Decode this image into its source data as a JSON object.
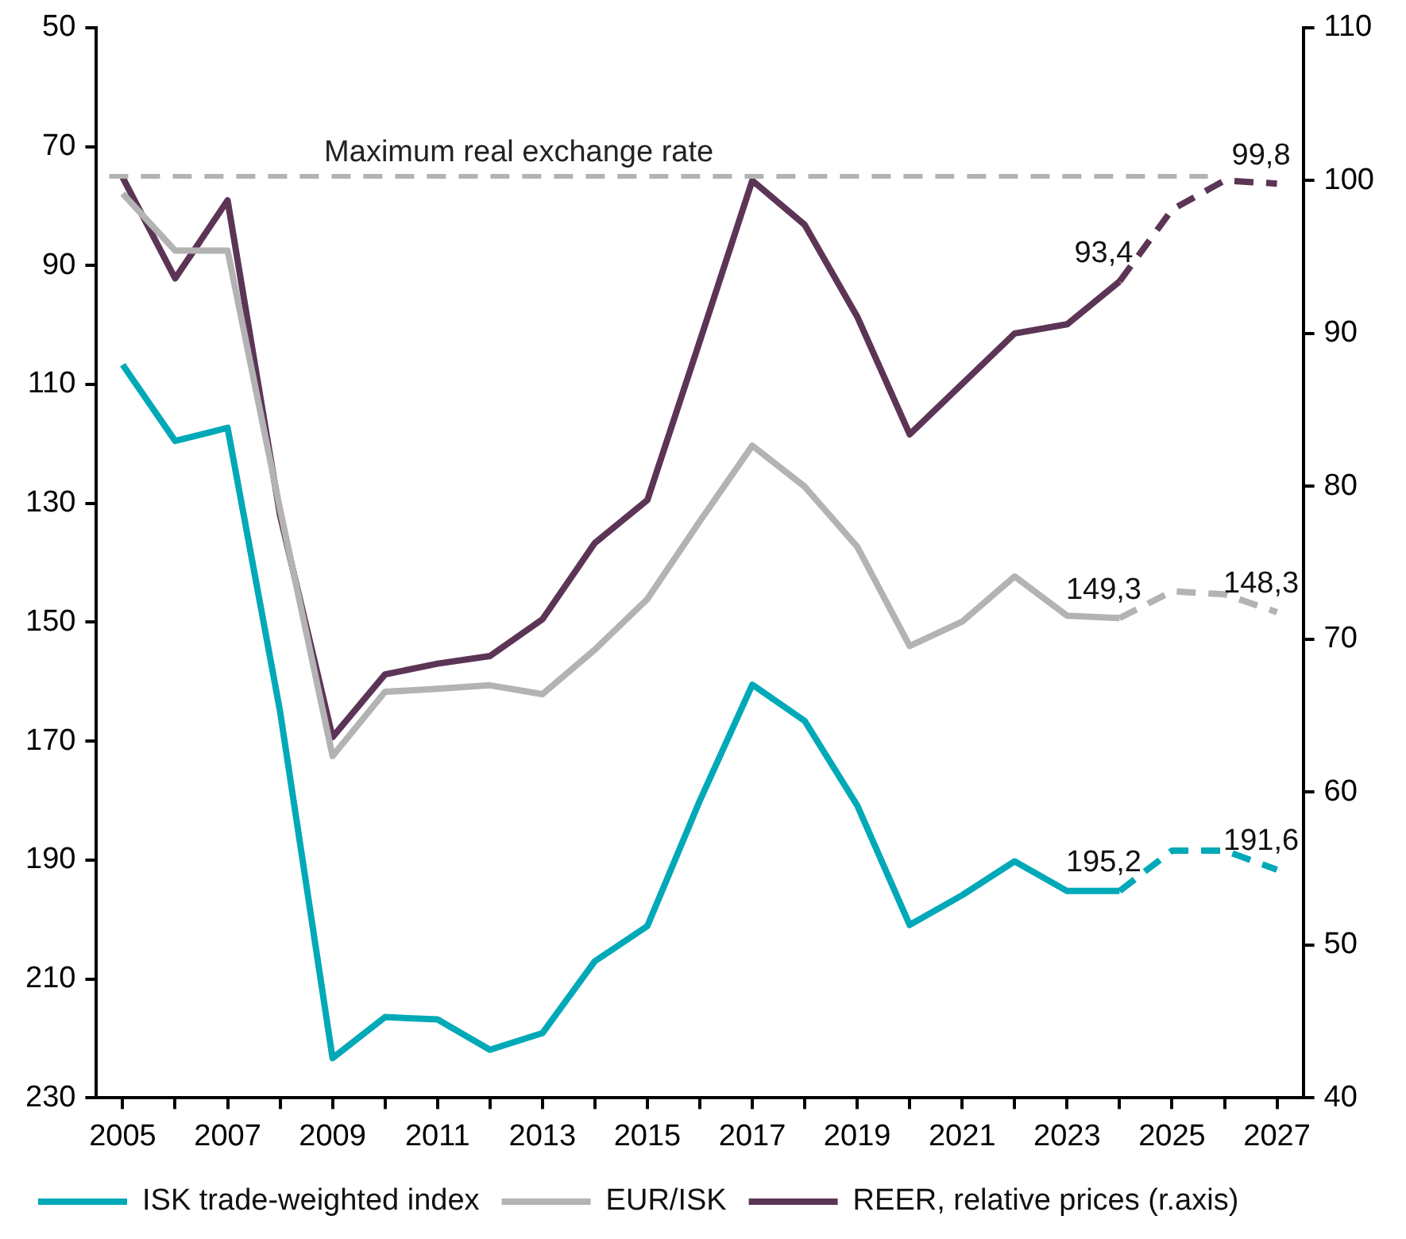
{
  "chart_data": {
    "type": "line",
    "x": [
      2005,
      2006,
      2007,
      2008,
      2009,
      2010,
      2011,
      2012,
      2013,
      2014,
      2015,
      2016,
      2017,
      2018,
      2019,
      2020,
      2021,
      2022,
      2023,
      2024
    ],
    "series": [
      {
        "name": "ISK trade-weighted index",
        "color": "#00a9b7",
        "values": [
          106.7,
          119.5,
          117.3,
          165,
          223.3,
          216.4,
          216.8,
          221.9,
          219.1,
          207,
          201.1,
          180,
          160.5,
          166.6,
          180.8,
          200.9,
          195.9,
          190.2,
          195.2,
          195.2
        ]
      },
      {
        "name": "EUR/ISK",
        "color": "#b3b3b3",
        "values": [
          77.9,
          87.5,
          87.5,
          131,
          172.5,
          161.7,
          161.2,
          160.6,
          162.1,
          154.6,
          146.1,
          133,
          120.3,
          127.2,
          137.3,
          154,
          149.9,
          142.3,
          148.9,
          149.3
        ]
      },
      {
        "name": "REER, relative prices (r.axis)",
        "color": "#5c3556",
        "axis": "y2",
        "values": [
          100.2,
          93.6,
          98.7,
          78.1,
          63.6,
          67.7,
          68.4,
          68.9,
          71.3,
          76.3,
          79.1,
          89.5,
          100,
          97.1,
          91.1,
          83.4,
          86.7,
          90,
          90.6,
          93.4
        ]
      },
      {
        "color": "#00a9b7",
        "line_style": "dashed",
        "x": [
          2024,
          2025,
          2026,
          2027
        ],
        "values": [
          195.2,
          188.4,
          188.4,
          191.6
        ],
        "value_labels": [
          "195,2",
          null,
          null,
          "191,6"
        ]
      },
      {
        "color": "#b3b3b3",
        "line_style": "dashed",
        "x": [
          2024,
          2025,
          2026,
          2027
        ],
        "values": [
          149.3,
          144.8,
          145.3,
          148.3
        ],
        "value_labels": [
          "149,3",
          null,
          null,
          "148,3"
        ]
      },
      {
        "color": "#5c3556",
        "line_style": "dashed",
        "axis": "y2",
        "x": [
          2024,
          2025,
          2026,
          2027
        ],
        "values": [
          93.4,
          98.1,
          100,
          99.8
        ],
        "value_labels": [
          "93,4",
          null,
          null,
          "99,8"
        ]
      }
    ],
    "xlim": [
      2004.5,
      2027.5
    ],
    "xticks": [
      2005,
      {
        "value": 2006,
        "label": null
      },
      2007,
      {
        "value": 2008,
        "label": null
      },
      2009,
      {
        "value": 2010,
        "label": null
      },
      2011,
      {
        "value": 2012,
        "label": null
      },
      2013,
      {
        "value": 2014,
        "label": null
      },
      2015,
      {
        "value": 2016,
        "label": null
      },
      2017,
      {
        "value": 2018,
        "label": null
      },
      2019,
      {
        "value": 2020,
        "label": null
      },
      2021,
      {
        "value": 2022,
        "label": null
      },
      2023,
      {
        "value": 2024,
        "label": null
      },
      2025,
      {
        "value": 2026,
        "label": null
      },
      2027
    ],
    "ylim": [
      230,
      50
    ],
    "yticks": [
      50,
      70,
      90,
      110,
      130,
      150,
      170,
      190,
      210,
      230
    ],
    "y2lim": [
      40,
      110
    ],
    "y2ticks": [
      40,
      50,
      60,
      70,
      80,
      90,
      100,
      110
    ],
    "ref_lines": [
      {
        "axis": "y",
        "value": 75,
        "label": "Maximum real exchange rate",
        "color": "#b3b3b3",
        "line_style": "dashed"
      }
    ],
    "grid": false,
    "legend": "bottom",
    "marker": "none",
    "line_style": "solid"
  }
}
